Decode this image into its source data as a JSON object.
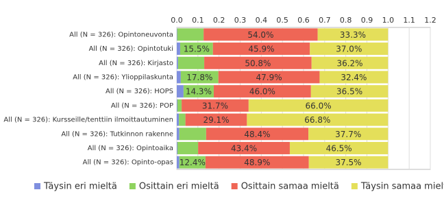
{
  "chart_data": {
    "type": "stacked-barh",
    "categories": [
      "All (N = 326): Opintoneuvonta",
      "All (N = 326): Opintotuki",
      "All (N = 326): Kirjasto",
      "All (N = 326): Ylioppilaskunta",
      "All (N = 326): HOPS",
      "All (N = 326): POP",
      "All (N = 326): Kursseille/tenttiin ilmoittautuminen",
      "All (N = 326): Tutkinnon rakenne",
      "All (N = 326): Opintoaika",
      "All (N = 326): Opinto-opas"
    ],
    "series": [
      {
        "name": "Täysin eri mieltä",
        "color": "#7f8fdf",
        "values": [
          0.002,
          0.016,
          0.006,
          0.019,
          0.032,
          0.003,
          0.01,
          0.012,
          0.003,
          0.012
        ],
        "value_labels": [
          null,
          null,
          null,
          null,
          null,
          null,
          null,
          null,
          null,
          null
        ]
      },
      {
        "name": "Osittain eri mieltä",
        "color": "#8fd35f",
        "values": [
          0.125,
          0.155,
          0.124,
          0.178,
          0.143,
          0.02,
          0.031,
          0.127,
          0.098,
          0.124
        ],
        "value_labels": [
          null,
          "15.5%",
          null,
          "17.8%",
          "14.3%",
          null,
          null,
          null,
          null,
          "12.4%"
        ]
      },
      {
        "name": "Osittain samaa mieltä",
        "color": "#ef6656",
        "values": [
          0.54,
          0.459,
          0.508,
          0.479,
          0.46,
          0.317,
          0.291,
          0.484,
          0.434,
          0.489
        ],
        "value_labels": [
          "54.0%",
          "45.9%",
          "50.8%",
          "47.9%",
          "46.0%",
          "31.7%",
          "29.1%",
          "48.4%",
          "43.4%",
          "48.9%"
        ]
      },
      {
        "name": "Täysin samaa mieltä",
        "color": "#e4df5a",
        "values": [
          0.333,
          0.37,
          0.362,
          0.324,
          0.365,
          0.66,
          0.668,
          0.377,
          0.465,
          0.375
        ],
        "value_labels": [
          "33.3%",
          "37.0%",
          "36.2%",
          "32.4%",
          "36.5%",
          "66.0%",
          "66.8%",
          "37.7%",
          "46.5%",
          "37.5%"
        ]
      }
    ],
    "xlim": [
      0,
      1.2
    ],
    "xticks": [
      {
        "value": 0,
        "label": "0.0"
      },
      0.1,
      0.2,
      0.3,
      0.4,
      0.5,
      0.6,
      0.7,
      0.8,
      0.9,
      {
        "value": 1,
        "label": "1.0"
      },
      1.1,
      1.2
    ],
    "grid": true
  }
}
